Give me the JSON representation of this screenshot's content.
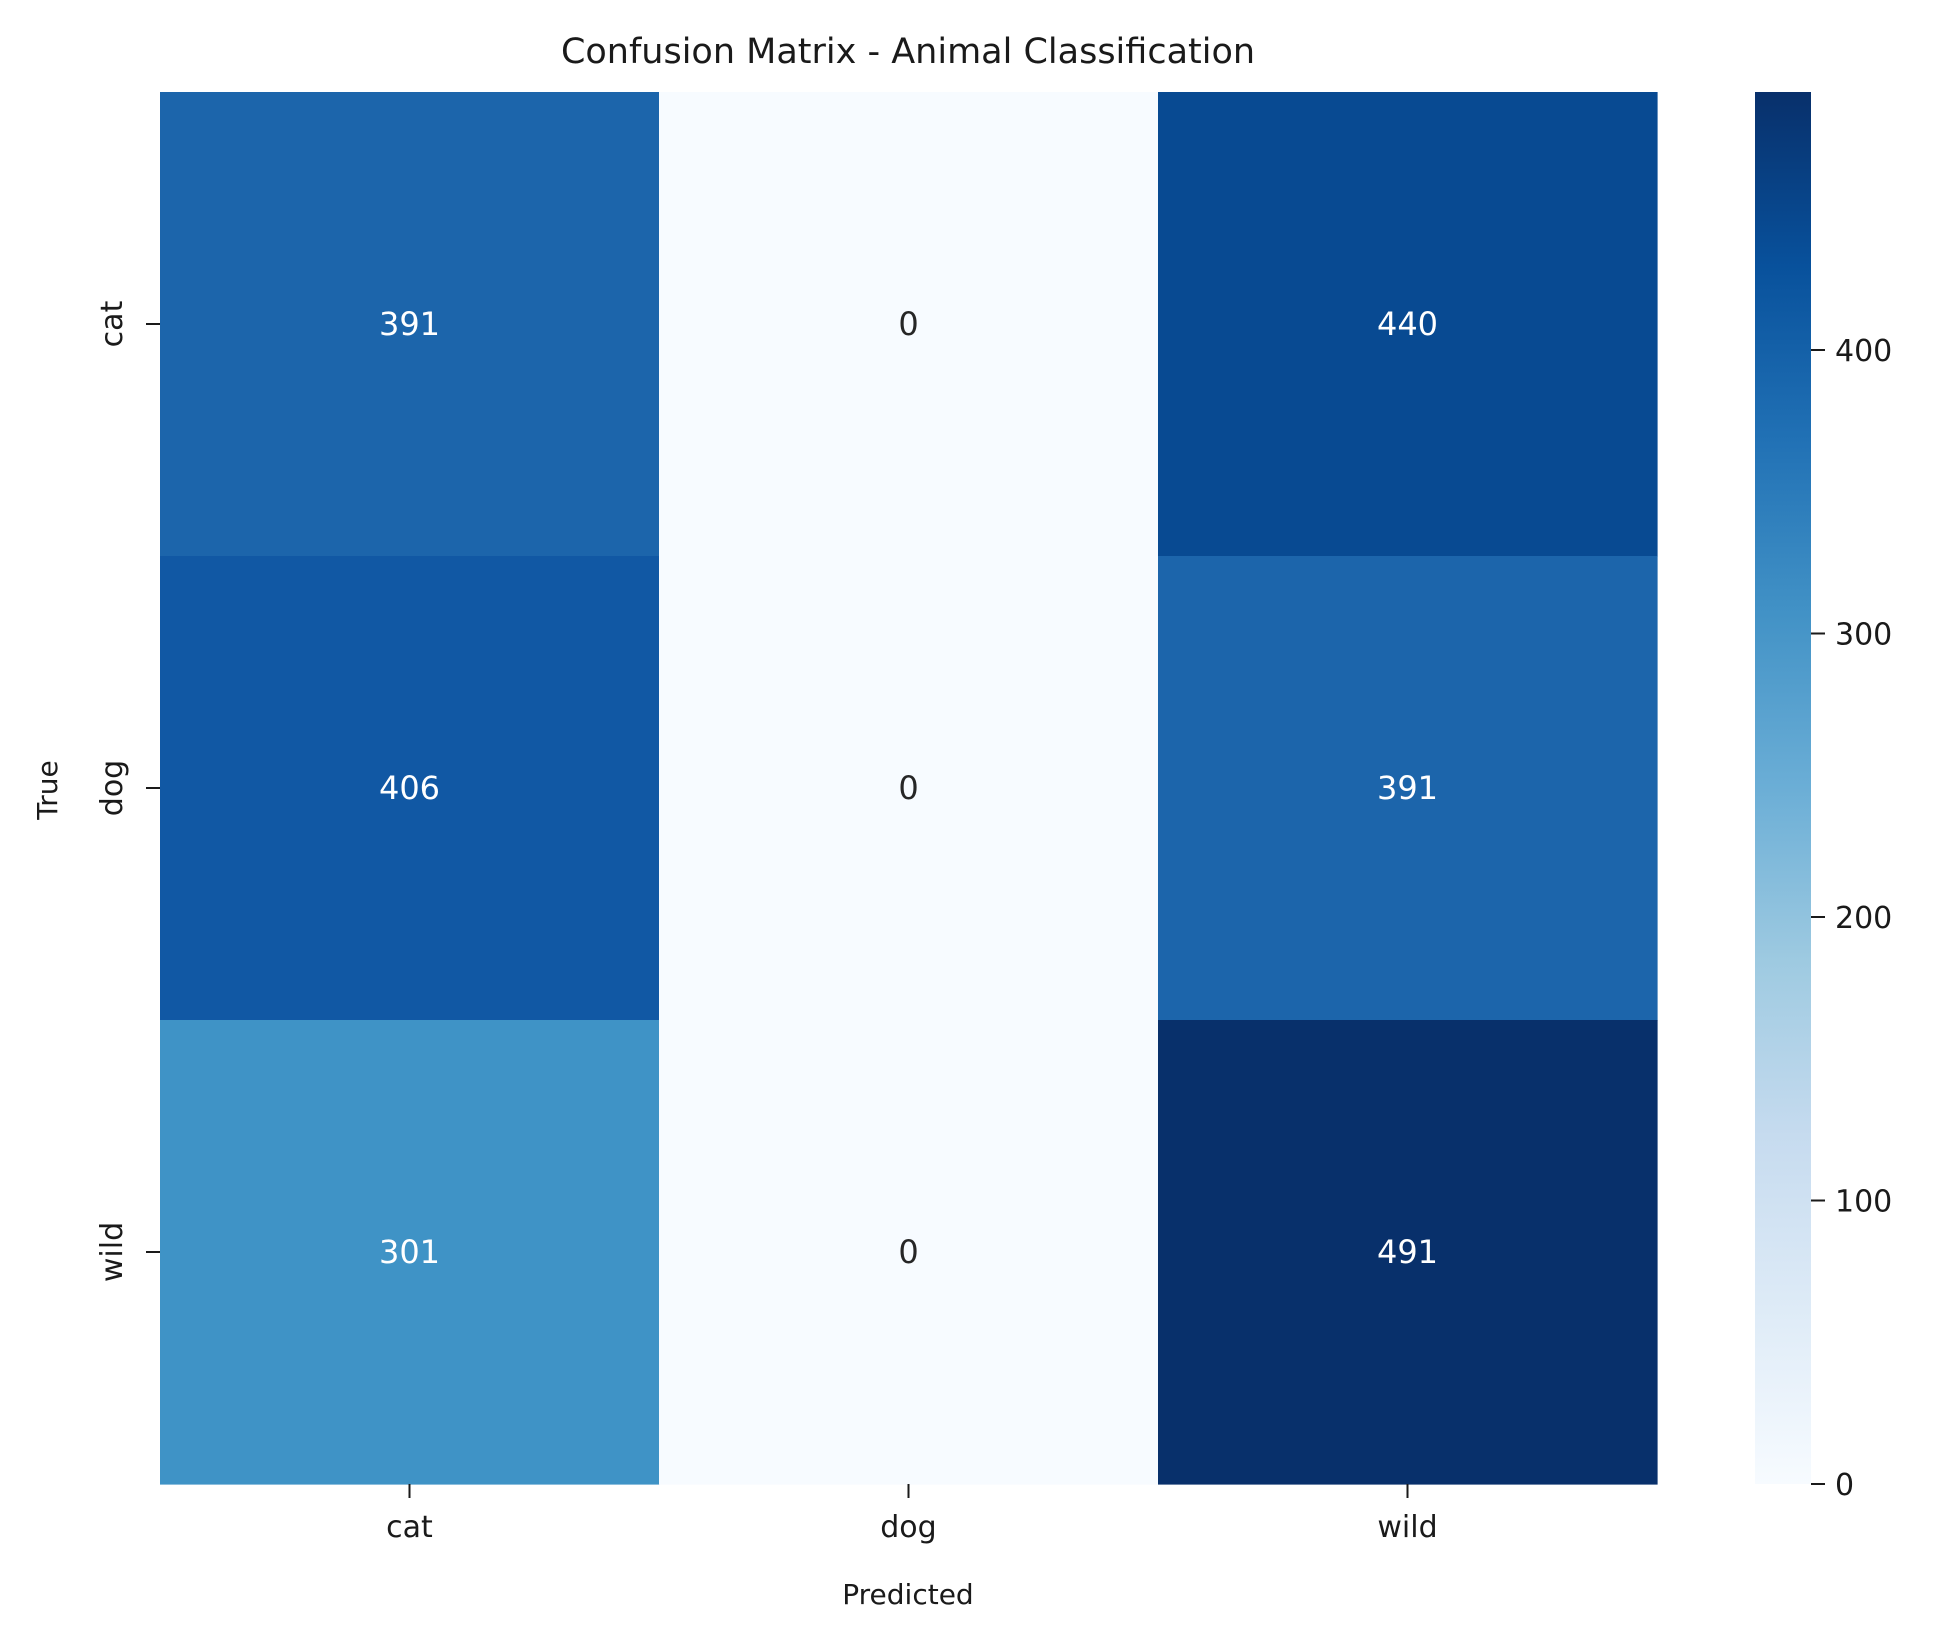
{
  "chart_data": {
    "type": "heatmap",
    "title": "Confusion Matrix - Animal Classification",
    "xlabel": "Predicted",
    "ylabel": "True",
    "x_categories": [
      "cat",
      "dog",
      "wild"
    ],
    "y_categories": [
      "cat",
      "dog",
      "wild"
    ],
    "values": [
      [
        391,
        0,
        440
      ],
      [
        406,
        0,
        391
      ],
      [
        301,
        0,
        491
      ]
    ],
    "colormap": "Blues",
    "color_range": [
      0,
      491
    ],
    "colorbar": {
      "ticks": [
        0,
        100,
        200,
        300,
        400
      ],
      "tick_labels": [
        "0",
        "100",
        "200",
        "300",
        "400"
      ],
      "placement": "right"
    },
    "cell_colors": [
      [
        "#1c65ab",
        "#f7fbff",
        "#084a92"
      ],
      [
        "#1158a4",
        "#f7fbff",
        "#1c65ab"
      ],
      [
        "#3f93c6",
        "#f7fbff",
        "#08306b"
      ]
    ],
    "annotation_colors": [
      [
        "#ffffff",
        "#262626",
        "#ffffff"
      ],
      [
        "#ffffff",
        "#262626",
        "#ffffff"
      ],
      [
        "#ffffff",
        "#262626",
        "#ffffff"
      ]
    ],
    "grid": false,
    "legend": "none"
  }
}
